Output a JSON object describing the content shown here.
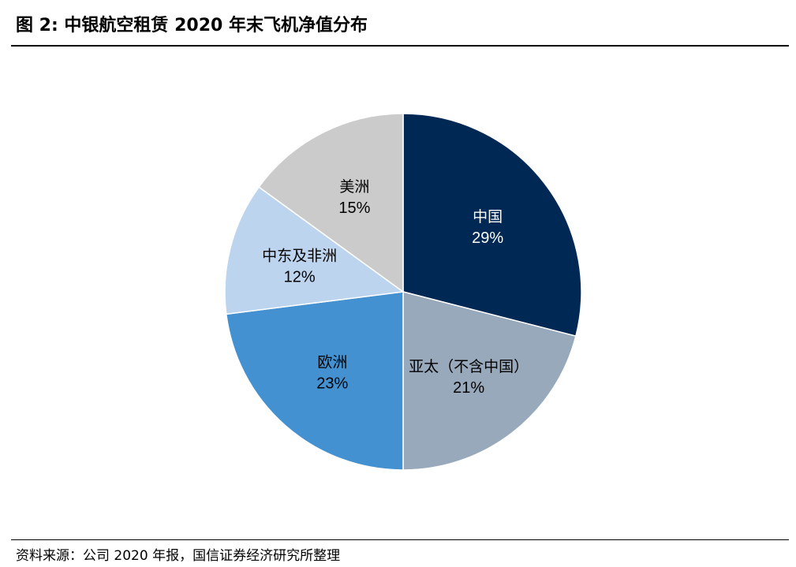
{
  "title": "图 2:  中银航空租赁 2020 年末飞机净值分布",
  "source": "资料来源：公司 2020 年报，国信证券经济研究所整理",
  "chart_data": {
    "type": "pie",
    "title": "图 2:  中银航空租赁 2020 年末飞机净值分布",
    "start_angle_deg": 0,
    "direction": "clockwise",
    "slices": [
      {
        "name": "中国",
        "value": 29,
        "label": "29%",
        "color": "#002855",
        "text_color": "#ffffff"
      },
      {
        "name": "亚太（不含中国）",
        "value": 21,
        "label": "21%",
        "color": "#97a9bb",
        "text_color": "#000000"
      },
      {
        "name": "欧洲",
        "value": 23,
        "label": "23%",
        "color": "#4391d0",
        "text_color": "#000000"
      },
      {
        "name": "中东及非洲",
        "value": 12,
        "label": "12%",
        "color": "#bdd4ee",
        "text_color": "#000000"
      },
      {
        "name": "美洲",
        "value": 15,
        "label": "15%",
        "color": "#cbcbcb",
        "text_color": "#000000"
      }
    ]
  }
}
